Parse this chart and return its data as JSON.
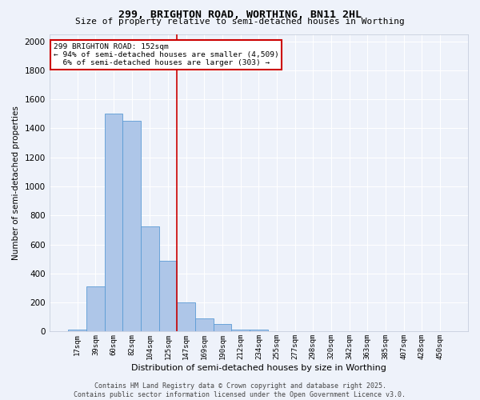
{
  "title1": "299, BRIGHTON ROAD, WORTHING, BN11 2HL",
  "title2": "Size of property relative to semi-detached houses in Worthing",
  "xlabel": "Distribution of semi-detached houses by size in Worthing",
  "ylabel": "Number of semi-detached properties",
  "bar_labels": [
    "17sqm",
    "39sqm",
    "60sqm",
    "82sqm",
    "104sqm",
    "125sqm",
    "147sqm",
    "169sqm",
    "190sqm",
    "212sqm",
    "234sqm",
    "255sqm",
    "277sqm",
    "298sqm",
    "320sqm",
    "342sqm",
    "363sqm",
    "385sqm",
    "407sqm",
    "428sqm",
    "450sqm"
  ],
  "bar_values": [
    15,
    310,
    1500,
    1450,
    725,
    485,
    200,
    90,
    50,
    15,
    15,
    0,
    0,
    0,
    0,
    0,
    0,
    0,
    0,
    0,
    0
  ],
  "bar_color": "#aec6e8",
  "bar_edge_color": "#5b9bd5",
  "vline_index": 6,
  "vline_color": "#cc0000",
  "ylim": [
    0,
    2050
  ],
  "yticks": [
    0,
    200,
    400,
    600,
    800,
    1000,
    1200,
    1400,
    1600,
    1800,
    2000
  ],
  "annotation_text": "299 BRIGHTON ROAD: 152sqm\n← 94% of semi-detached houses are smaller (4,509)\n  6% of semi-detached houses are larger (303) →",
  "annotation_box_color": "#ffffff",
  "annotation_box_edge": "#cc0000",
  "footer_text": "Contains HM Land Registry data © Crown copyright and database right 2025.\nContains public sector information licensed under the Open Government Licence v3.0.",
  "bg_color": "#eef2fa",
  "grid_color": "#ffffff"
}
